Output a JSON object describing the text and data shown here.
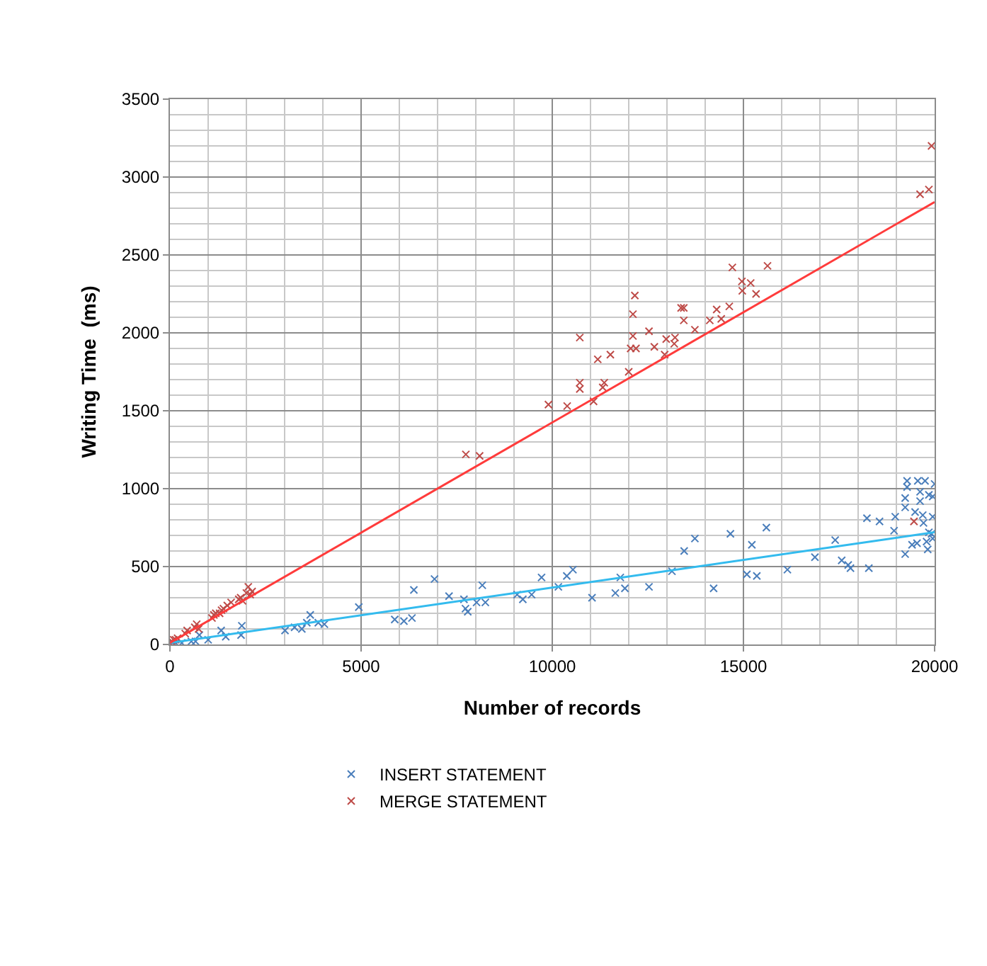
{
  "chart_data": {
    "type": "scatter",
    "xlabel": "Number of records",
    "ylabel": "Writing Time  (ms)",
    "xlim": [
      0,
      20000
    ],
    "xticks": [
      0,
      5000,
      10000,
      15000,
      20000
    ],
    "ylim": [
      0,
      3500
    ],
    "yticks": [
      0,
      500,
      1000,
      1500,
      2000,
      2500,
      3000,
      3500
    ],
    "grid": true,
    "legend": "bottom",
    "series": [
      {
        "name": "INSERT STATEMENT",
        "color": "#4a7ebb",
        "marker": "cross",
        "x": [
          20000,
          19280,
          19280,
          19560,
          19750,
          19230,
          19620,
          19850,
          19950,
          19620,
          19230,
          19490,
          19690,
          19950,
          18970,
          18560,
          18230,
          19710,
          19850,
          19950,
          19790,
          19540,
          19410,
          19820,
          19230,
          18940,
          19920,
          17400,
          16870,
          17570,
          17740,
          17800,
          18280,
          16150,
          15600,
          15220,
          15090,
          15350,
          14660,
          14220,
          13730,
          13450,
          13130,
          12530,
          11780,
          11900,
          11650,
          11040,
          10540,
          10380,
          10160,
          9720,
          9460,
          9230,
          9080,
          8170,
          8250,
          8020,
          7690,
          7730,
          7790,
          7300,
          6920,
          6380,
          6330,
          6120,
          5880,
          4940,
          4040,
          3880,
          3670,
          3580,
          3450,
          3260,
          3010,
          1880,
          1860,
          1460,
          1340,
          1000,
          770,
          670,
          560,
          310,
          150,
          60
        ],
        "values": [
          1030,
          1050,
          1010,
          1050,
          1050,
          940,
          980,
          960,
          950,
          920,
          880,
          850,
          830,
          820,
          820,
          790,
          810,
          780,
          720,
          680,
          660,
          650,
          640,
          610,
          580,
          730,
          710,
          670,
          560,
          540,
          510,
          490,
          490,
          480,
          750,
          640,
          450,
          440,
          710,
          360,
          680,
          600,
          470,
          370,
          430,
          360,
          330,
          300,
          480,
          440,
          370,
          430,
          320,
          290,
          320,
          380,
          270,
          270,
          290,
          230,
          210,
          310,
          420,
          350,
          170,
          150,
          160,
          240,
          130,
          140,
          190,
          140,
          100,
          110,
          90,
          120,
          60,
          50,
          90,
          30,
          60,
          20,
          20,
          10,
          10,
          10
        ]
      },
      {
        "name": "MERGE STATEMENT",
        "color": "#be4b48",
        "marker": "cross",
        "x": [
          19920,
          19620,
          19850,
          19460,
          14710,
          15630,
          14960,
          15190,
          14970,
          15330,
          14630,
          14300,
          14420,
          14120,
          13440,
          13370,
          13440,
          13730,
          13210,
          12980,
          13190,
          12940,
          12530,
          12670,
          12160,
          12110,
          12110,
          12050,
          12190,
          12000,
          11520,
          11190,
          11360,
          11320,
          11080,
          10720,
          10720,
          10720,
          10390,
          9900,
          7740,
          8100,
          0,
          50,
          100,
          150,
          200,
          400,
          450,
          650,
          700,
          750,
          1100,
          1150,
          1200,
          1300,
          1350,
          1400,
          1500,
          1600,
          1800,
          1850,
          1900,
          2000,
          2050,
          2100,
          2150
        ],
        "values": [
          3200,
          2890,
          2920,
          790,
          2420,
          2430,
          2330,
          2320,
          2270,
          2250,
          2170,
          2150,
          2090,
          2080,
          2160,
          2160,
          2080,
          2020,
          1970,
          1960,
          1930,
          1860,
          2010,
          1910,
          2240,
          2120,
          1980,
          1900,
          1900,
          1750,
          1860,
          1830,
          1680,
          1650,
          1560,
          1970,
          1680,
          1640,
          1530,
          1540,
          1220,
          1210,
          10,
          20,
          30,
          30,
          40,
          70,
          90,
          110,
          130,
          100,
          170,
          190,
          200,
          200,
          220,
          230,
          250,
          270,
          290,
          300,
          280,
          330,
          370,
          320,
          340
        ]
      },
      {
        "type": "line",
        "color": "#33bbee",
        "marker": "none",
        "x": [
          0,
          20000
        ],
        "values": [
          10,
          720
        ]
      },
      {
        "type": "line",
        "color": "#ff3b3b",
        "marker": "none",
        "x": [
          0,
          20000
        ],
        "values": [
          10,
          2840
        ]
      }
    ]
  }
}
